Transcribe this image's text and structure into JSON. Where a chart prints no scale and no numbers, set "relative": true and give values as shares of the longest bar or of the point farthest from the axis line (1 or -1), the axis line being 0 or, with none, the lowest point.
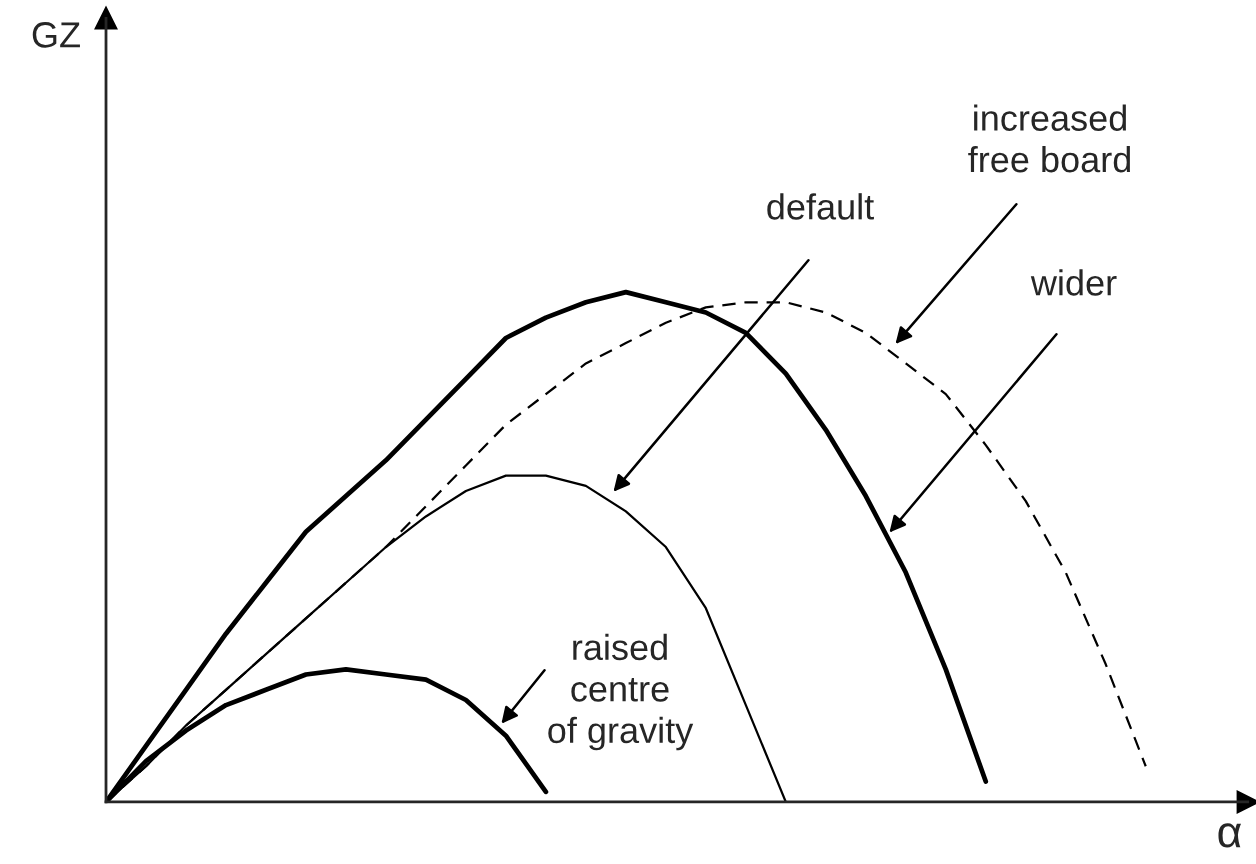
{
  "chart_data": {
    "type": "line",
    "relative": true,
    "xlabel": "α",
    "categories": [
      null,
      null,
      null,
      null,
      null,
      null,
      null,
      null,
      null,
      null,
      null,
      null,
      null,
      null,
      null,
      null,
      null,
      null,
      null,
      null,
      null,
      null,
      null,
      null,
      null,
      null,
      null,
      null,
      null
    ],
    "series": [
      {
        "color": "#000000",
        "line_style": "solid",
        "values": [
          0,
          0.11,
          0.22,
          0.33,
          0.43,
          0.53,
          0.6,
          0.67,
          0.75,
          0.83,
          0.91,
          0.95,
          0.98,
          1,
          0.98,
          0.96,
          0.92,
          0.84,
          0.73,
          0.6,
          0.45,
          0.26,
          0.04,
          null,
          null,
          null,
          null,
          null,
          null
        ]
      },
      {
        "color": "#000000",
        "line_style": "dashed",
        "values": [
          0,
          0.07,
          0.15,
          0.22,
          0.29,
          0.36,
          0.43,
          0.5,
          0.58,
          0.66,
          0.74,
          0.8,
          0.86,
          0.9,
          0.94,
          0.97,
          0.98,
          0.98,
          0.96,
          0.92,
          0.86,
          0.8,
          0.7,
          0.59,
          0.45,
          0.27,
          0.07,
          null,
          null
        ]
      },
      {
        "color": "#000000",
        "line_style": "solid",
        "values": [
          0,
          0.07,
          0.15,
          0.22,
          0.29,
          0.36,
          0.43,
          0.5,
          0.56,
          0.61,
          0.64,
          0.64,
          0.62,
          0.57,
          0.5,
          0.38,
          0.19,
          0,
          null,
          null,
          null,
          null,
          null,
          null,
          null,
          null,
          null,
          null,
          null
        ]
      },
      {
        "color": "#000000",
        "line_style": "solid",
        "values": [
          0,
          0.08,
          0.14,
          0.19,
          0.22,
          0.25,
          0.26,
          0.25,
          0.24,
          0.2,
          0.13,
          0.02,
          null,
          null,
          null,
          null,
          null,
          null,
          null,
          null,
          null,
          null,
          null,
          null,
          null,
          null,
          null,
          null,
          null
        ]
      }
    ],
    "annotations": [
      "GZ",
      "increased\nfree board",
      "wider",
      "default",
      "raised\ncentre\nof gravity"
    ],
    "tick_labels": false
  }
}
